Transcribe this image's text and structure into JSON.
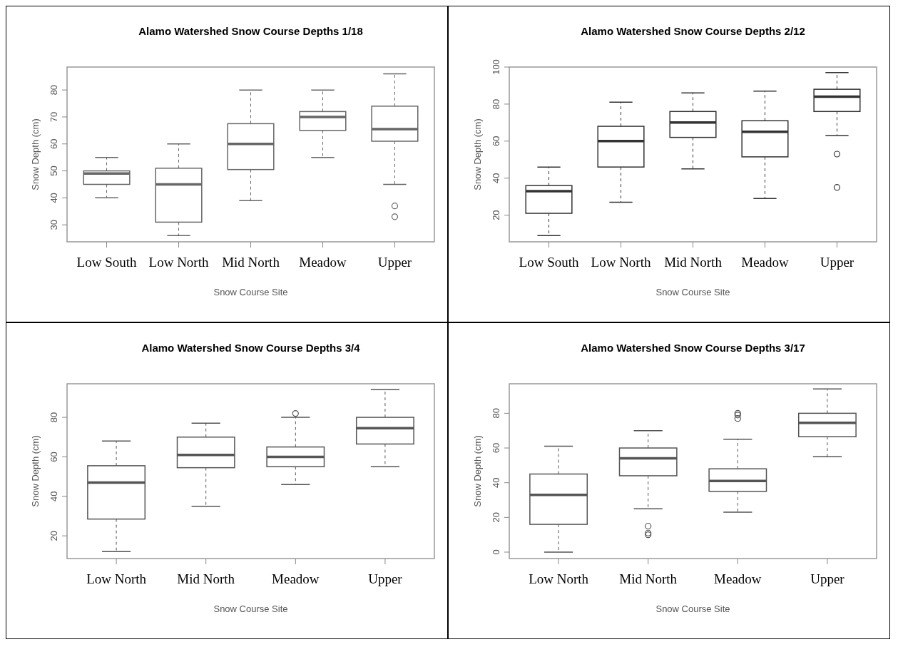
{
  "chart_data": [
    {
      "type": "box",
      "title": "Alamo Watershed Snow Course Depths 1/18",
      "xlabel": "Snow Course Site",
      "ylabel": "Snow Depth (cm)",
      "categories": [
        "Low South",
        "Low North",
        "Mid North",
        "Meadow",
        "Upper"
      ],
      "ylim": [
        23.7,
        88.5
      ],
      "yticks": [
        30,
        40,
        50,
        60,
        70,
        80
      ],
      "color": "#666666",
      "boxes": [
        {
          "low": 40,
          "q1": 45,
          "median": 49,
          "q3": 50,
          "high": 55
        },
        {
          "low": 26,
          "q1": 31,
          "median": 45,
          "q3": 51,
          "high": 60
        },
        {
          "low": 39,
          "q1": 50.5,
          "median": 60,
          "q3": 67.5,
          "high": 80
        },
        {
          "low": 55,
          "q1": 65,
          "median": 70,
          "q3": 72,
          "high": 80
        },
        {
          "low": 45,
          "q1": 61,
          "median": 65.5,
          "q3": 74,
          "high": 86,
          "outliers": [
            37,
            33
          ]
        }
      ]
    },
    {
      "type": "box",
      "title": "Alamo Watershed Snow Course Depths 2/12",
      "xlabel": "Snow Course Site",
      "ylabel": "Snow Depth (cm)",
      "categories": [
        "Low South",
        "Low North",
        "Mid North",
        "Meadow",
        "Upper"
      ],
      "ylim": [
        5.6,
        100
      ],
      "yticks": [
        20,
        40,
        60,
        80,
        100
      ],
      "color": "#333333",
      "boxes": [
        {
          "low": 9,
          "q1": 21,
          "median": 33,
          "q3": 36,
          "high": 46
        },
        {
          "low": 27,
          "q1": 46,
          "median": 60,
          "q3": 68,
          "high": 81
        },
        {
          "low": 45,
          "q1": 62,
          "median": 70,
          "q3": 76,
          "high": 86
        },
        {
          "low": 29,
          "q1": 51.5,
          "median": 65,
          "q3": 71,
          "high": 87
        },
        {
          "low": 63,
          "q1": 76,
          "median": 84,
          "q3": 88,
          "high": 97,
          "outliers": [
            53,
            35
          ]
        }
      ]
    },
    {
      "type": "box",
      "title": "Alamo Watershed Snow Course Depths 3/4",
      "xlabel": "Snow Course Site",
      "ylabel": "Snow Depth (cm)",
      "categories": [
        "Low North",
        "Mid North",
        "Meadow",
        "Upper"
      ],
      "ylim": [
        8.5,
        97
      ],
      "yticks": [
        20,
        40,
        60,
        80
      ],
      "color": "#555555",
      "boxes": [
        {
          "low": 12,
          "q1": 28.5,
          "median": 47,
          "q3": 55.5,
          "high": 68
        },
        {
          "low": 35,
          "q1": 54.5,
          "median": 61,
          "q3": 70,
          "high": 77
        },
        {
          "low": 46,
          "q1": 55,
          "median": 60,
          "q3": 65,
          "high": 80,
          "outliers": [
            82
          ]
        },
        {
          "low": 55,
          "q1": 66.5,
          "median": 74.5,
          "q3": 80,
          "high": 94
        }
      ]
    },
    {
      "type": "box",
      "title": "Alamo Watershed Snow Course Depths 3/17",
      "xlabel": "Snow Course Site",
      "ylabel": "Snow Depth (cm)",
      "categories": [
        "Low North",
        "Mid North",
        "Meadow",
        "Upper"
      ],
      "ylim": [
        -3.7,
        97
      ],
      "yticks": [
        0,
        20,
        40,
        60,
        80
      ],
      "color": "#555555",
      "boxes": [
        {
          "low": 0,
          "q1": 16,
          "median": 33,
          "q3": 45,
          "high": 61
        },
        {
          "low": 25,
          "q1": 44,
          "median": 54,
          "q3": 60,
          "high": 70,
          "outliers": [
            15,
            11,
            10
          ]
        },
        {
          "low": 23,
          "q1": 35,
          "median": 41,
          "q3": 48,
          "high": 65,
          "outliers": [
            80,
            79,
            77
          ]
        },
        {
          "low": 55,
          "q1": 66.5,
          "median": 74.5,
          "q3": 80,
          "high": 94
        }
      ]
    }
  ]
}
